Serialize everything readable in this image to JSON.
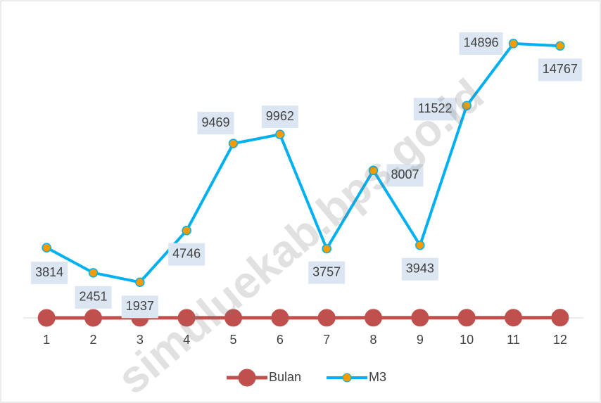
{
  "chart_data": {
    "type": "line",
    "categories": [
      "1",
      "2",
      "3",
      "4",
      "5",
      "6",
      "7",
      "8",
      "9",
      "10",
      "11",
      "12"
    ],
    "series": [
      {
        "name": "Bulan",
        "color": "#c0504d",
        "values": [
          1,
          2,
          3,
          4,
          5,
          6,
          7,
          8,
          9,
          10,
          11,
          12
        ]
      },
      {
        "name": "M3",
        "color": "#00b0f0",
        "marker_color": "#f59d00",
        "values": [
          3814,
          2451,
          1937,
          4746,
          9469,
          9962,
          3757,
          8007,
          3943,
          11522,
          14896,
          14767
        ],
        "data_labels": true
      }
    ],
    "ylim": [
      0,
      16000
    ],
    "legend": "bottom",
    "watermark": "simuluekab.bps.go.id"
  }
}
